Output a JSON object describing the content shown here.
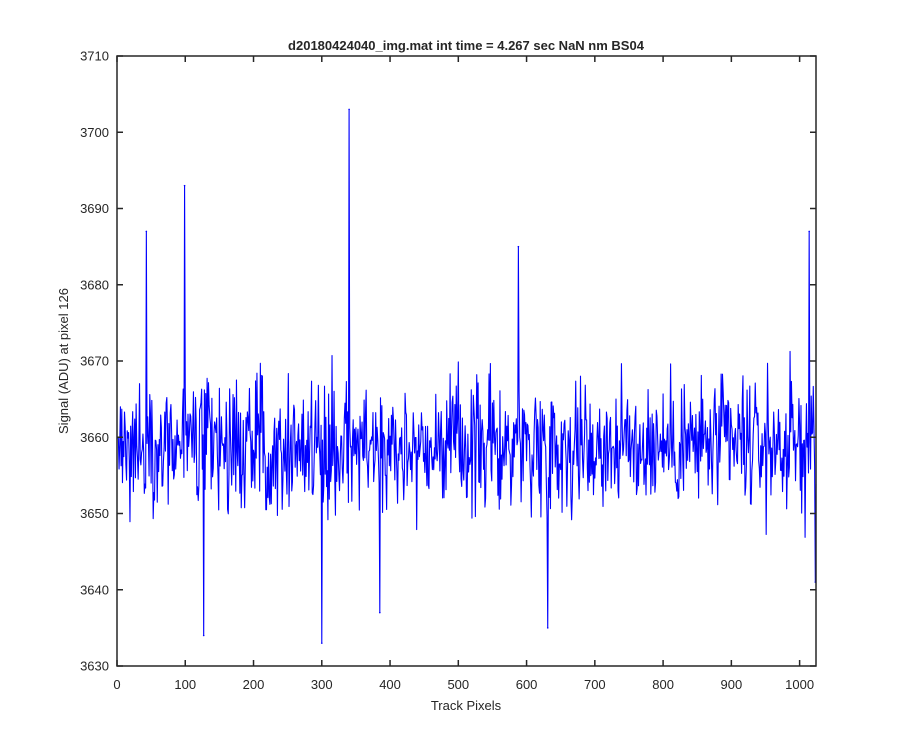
{
  "figure": {
    "title": "d20180424040_img.mat int time = 4.267 sec  NaN nm BS04"
  },
  "chart_data": {
    "type": "line",
    "title": "d20180424040_img.mat int time = 4.267 sec  NaN nm BS04",
    "xlabel": "Track Pixels",
    "ylabel": "Signal (ADU) at pixel 126",
    "xlim": [
      0,
      1024
    ],
    "ylim": [
      3630,
      3710
    ],
    "xticks": [
      0,
      100,
      200,
      300,
      400,
      500,
      600,
      700,
      800,
      900,
      1000
    ],
    "yticks": [
      3630,
      3640,
      3650,
      3660,
      3670,
      3680,
      3690,
      3700,
      3710
    ],
    "grid": false,
    "series": [
      {
        "color": "#0000ff",
        "x": [
          1,
          43,
          99,
          127,
          300,
          340,
          385,
          588,
          631,
          1014,
          1023
        ],
        "y": [
          3660,
          3687,
          3693,
          3634,
          3633,
          3703,
          3637,
          3685,
          3635,
          3687,
          3641
        ],
        "noise": {
          "count": 1024,
          "center": 3659,
          "amplitude": 9,
          "seed": 42
        }
      }
    ]
  }
}
